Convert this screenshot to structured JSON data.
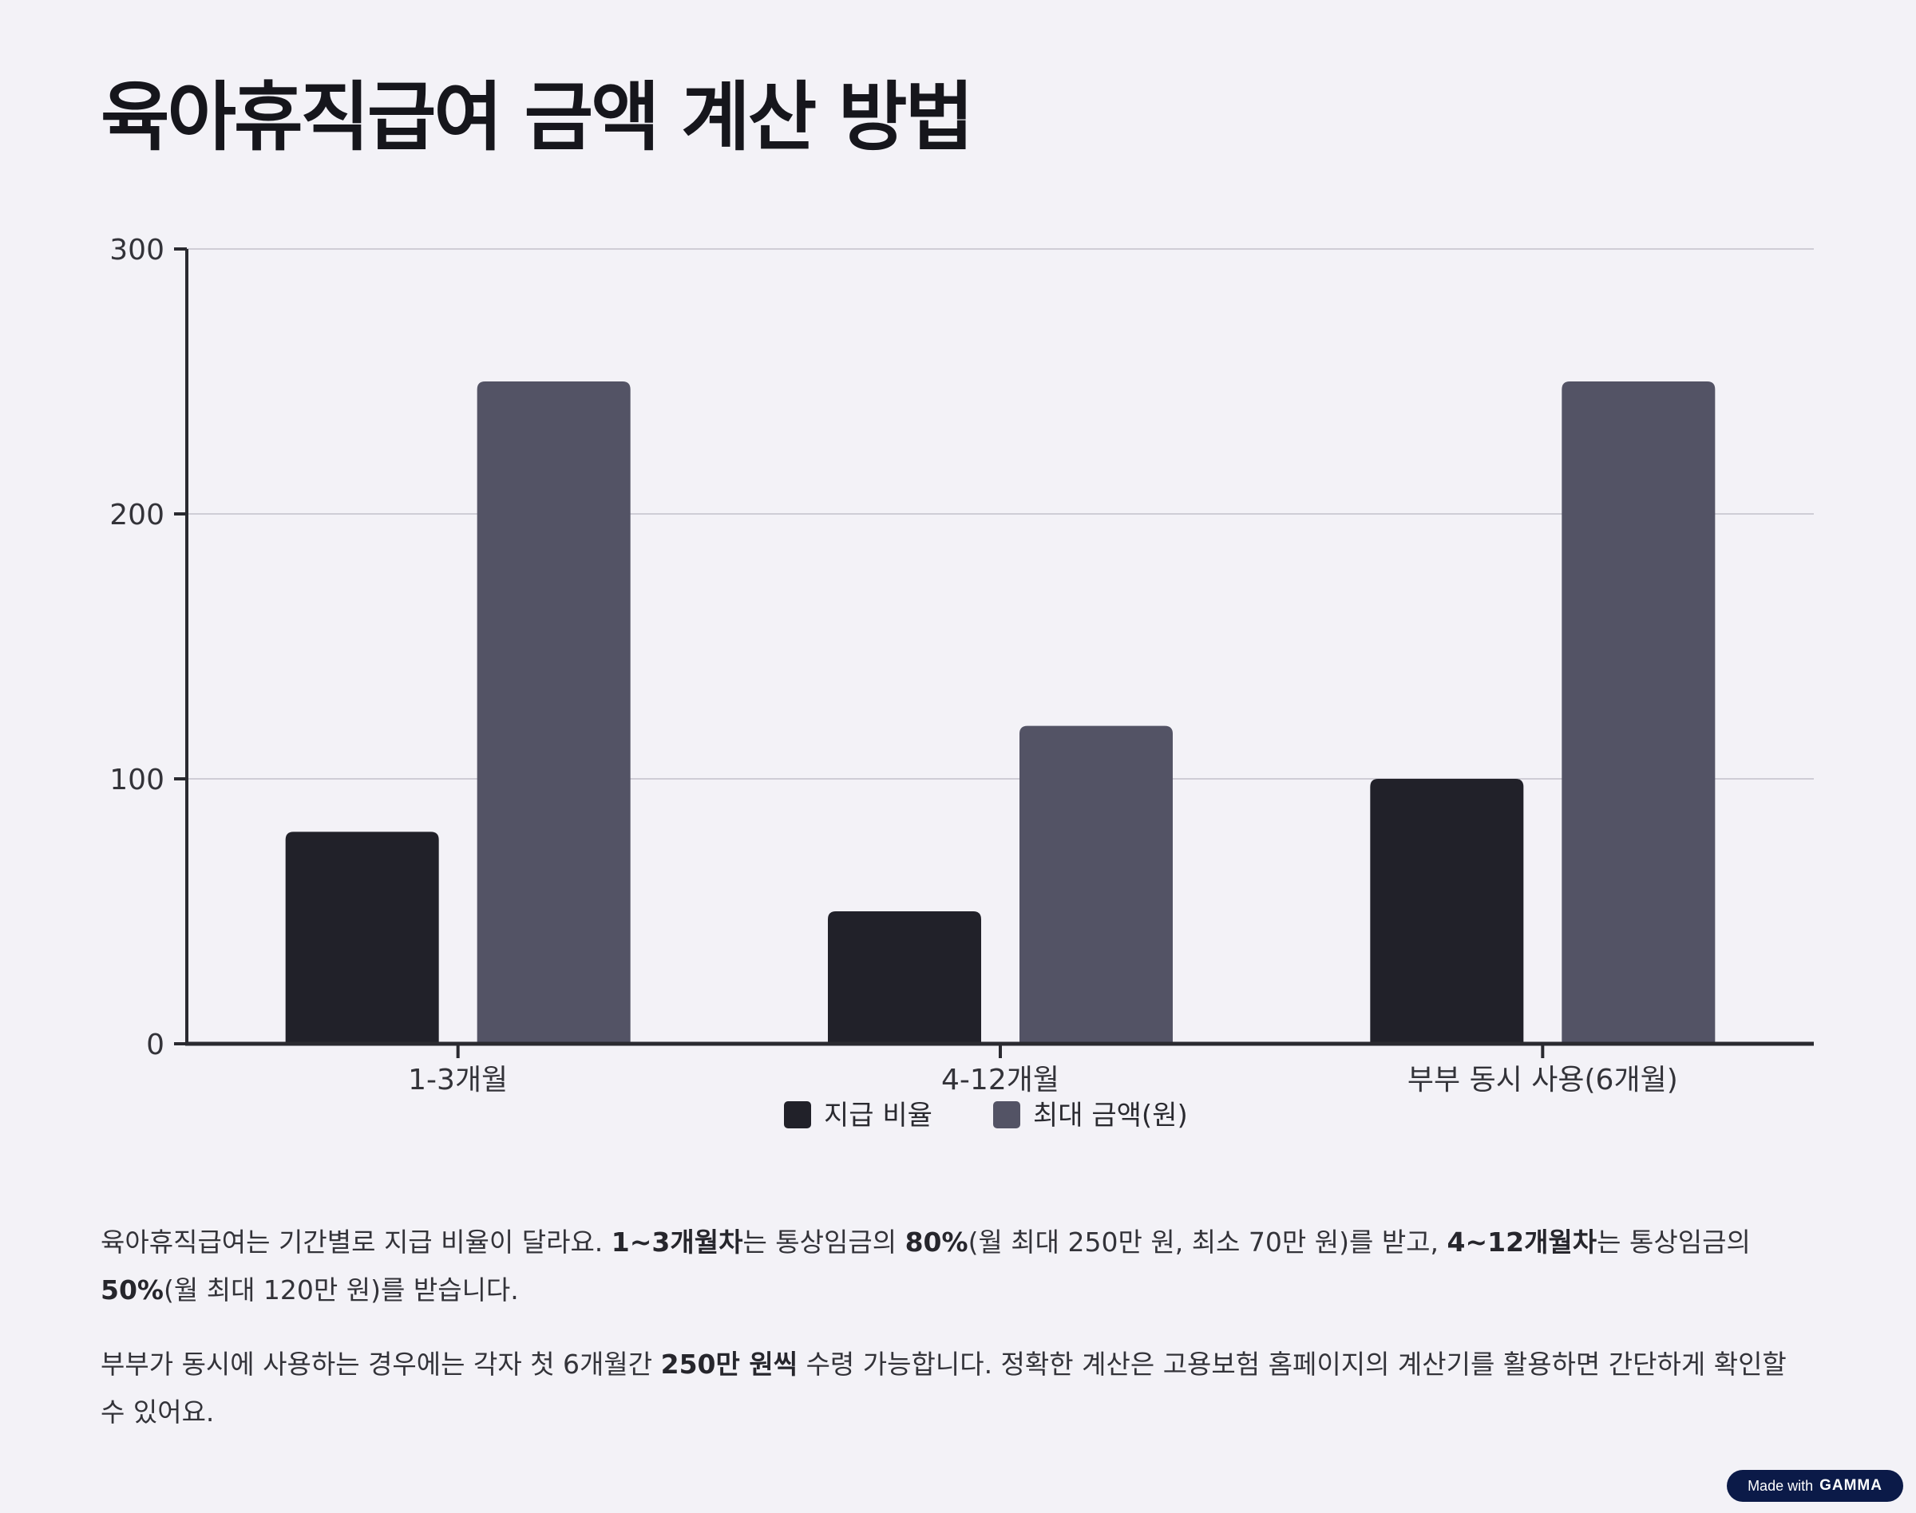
{
  "title": "육아휴직급여 금액 계산 방법",
  "chart_data": {
    "type": "bar",
    "categories": [
      "1-3개월",
      "4-12개월",
      "부부 동시 사용(6개월)"
    ],
    "series": [
      {
        "name": "지급 비율",
        "values": [
          80,
          50,
          100
        ],
        "color": "#212129"
      },
      {
        "name": "최대 금액(원)",
        "values": [
          250,
          120,
          250
        ],
        "color": "#535365"
      }
    ],
    "ylim": [
      0,
      300
    ],
    "yticks": [
      0,
      100,
      200,
      300
    ],
    "grid": true,
    "legend_position": "bottom-center",
    "title": "",
    "xlabel": "",
    "ylabel": ""
  },
  "paragraphs": {
    "p1": {
      "t1": "육아휴직급여는 기간별로 지급 비율이 달라요. ",
      "b1": "1~3개월차",
      "t2": "는 통상임금의 ",
      "b2": "80%",
      "t3": "(월 최대 250만 원, 최소 70만 원)를 받고, ",
      "b3": "4~12개월차",
      "t4": "는 통상임금의 ",
      "b4": "50%",
      "t5": "(월 최대 120만 원)를 받습니다."
    },
    "p2": {
      "t1": "부부가 동시에 사용하는 경우에는 각자 첫 6개월간 ",
      "b1": "250만 원씩",
      "t2": " 수령 가능합니다. 정확한 계산은 고용보험 홈페이지의 계산기를 활용하면 간단하게 확인할 수 있어요."
    }
  },
  "badge": {
    "prefix": "Made with",
    "brand": "GAMMA"
  }
}
